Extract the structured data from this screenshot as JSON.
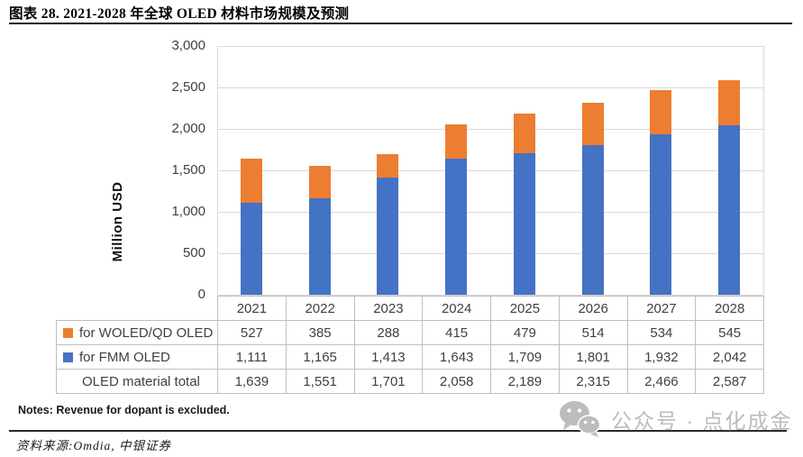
{
  "title": "图表 28. 2021-2028 年全球 OLED 材料市场规模及预测",
  "chart_data": {
    "type": "bar",
    "stacked": true,
    "categories": [
      "2021",
      "2022",
      "2023",
      "2024",
      "2025",
      "2026",
      "2027",
      "2028"
    ],
    "series": [
      {
        "name": "for WOLED/QD OLED",
        "color": "#ED7D31",
        "values": [
          527,
          385,
          288,
          415,
          479,
          514,
          534,
          545
        ]
      },
      {
        "name": "for FMM OLED",
        "color": "#4472C4",
        "values": [
          1111,
          1165,
          1413,
          1643,
          1709,
          1801,
          1932,
          2042
        ]
      }
    ],
    "totals_row": {
      "label": "OLED material total",
      "values": [
        1639,
        1551,
        1701,
        2058,
        2189,
        2315,
        2466,
        2587
      ]
    },
    "title": "",
    "xlabel": "",
    "ylabel": "Million USD",
    "ylim": [
      0,
      3000
    ],
    "ytick_step": 500,
    "grid": "horizontal",
    "gridline_color": "#d9d9d9",
    "legend_position": "table-left-keys"
  },
  "colors": {
    "accent_orange": "#ED7D31",
    "accent_blue": "#4472C4",
    "table_border": "#bfbfbf"
  },
  "notes": "Notes: Revenue for dopant is excluded.",
  "source": "资料来源:Omdia, 中银证券",
  "watermark": {
    "icon": "wechat-icon",
    "text": "公众号 · 点化成金"
  }
}
